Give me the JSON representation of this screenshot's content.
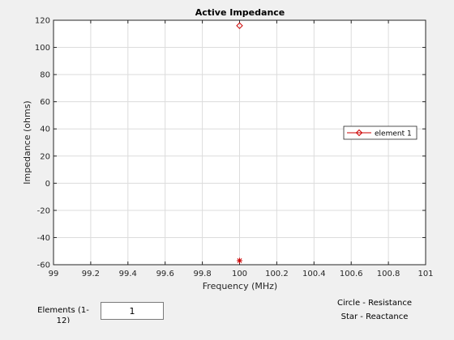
{
  "chart_data": {
    "type": "scatter",
    "title": "Active Impedance",
    "xlabel": "Frequency (MHz)",
    "ylabel": "Impedance (ohms)",
    "xlim": [
      99,
      101
    ],
    "ylim": [
      -60,
      120
    ],
    "xticks": [
      "99",
      "99.2",
      "99.4",
      "99.6",
      "99.8",
      "100",
      "100.2",
      "100.4",
      "100.6",
      "100.8",
      "101"
    ],
    "yticks": [
      "-60",
      "-40",
      "-20",
      "0",
      "20",
      "40",
      "60",
      "80",
      "100",
      "120"
    ],
    "grid": true,
    "legend_position": "right",
    "series": [
      {
        "name": "element 1",
        "color": "#cc0000",
        "resistance": [
          {
            "x": 100,
            "y": 116
          }
        ],
        "reactance": [
          {
            "x": 100,
            "y": -57
          }
        ]
      }
    ]
  },
  "controls": {
    "elements_label": "Elements (1-12)",
    "elements_value": "1"
  },
  "notes": {
    "circle": "Circle - Resistance",
    "star": "Star - Reactance"
  }
}
